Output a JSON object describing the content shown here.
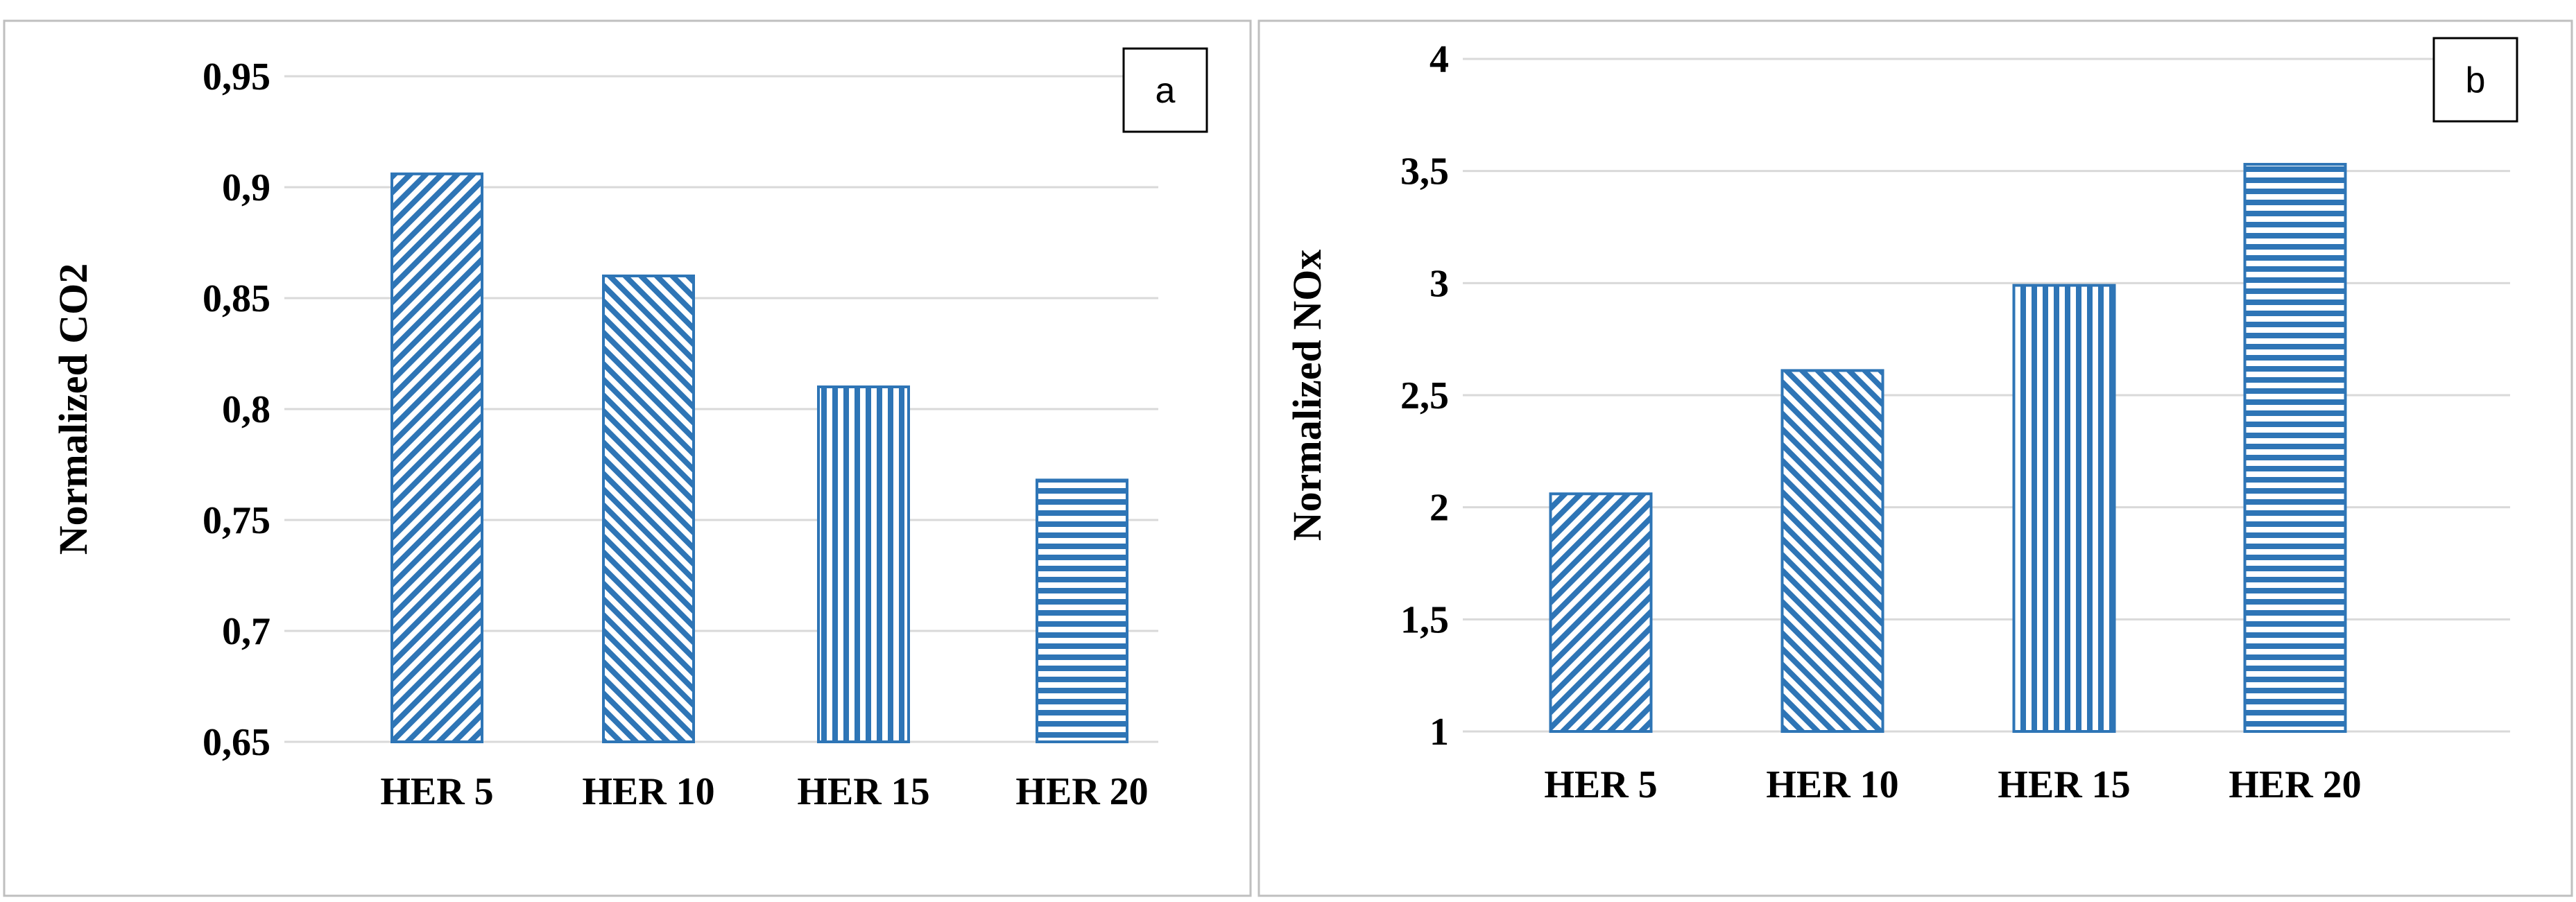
{
  "chart_data": [
    {
      "type": "bar",
      "panel_label": "a",
      "categories": [
        "HER 5",
        "HER 10",
        "HER 15",
        "HER 20"
      ],
      "values": [
        0.906,
        0.86,
        0.81,
        0.768
      ],
      "ylabel": "Normalized CO2",
      "ylim": [
        0.65,
        0.95
      ],
      "yticks": [
        0.65,
        0.7,
        0.75,
        0.8,
        0.85,
        0.9,
        0.95
      ],
      "ytick_labels": [
        "0,65",
        "0,7",
        "0,75",
        "0,8",
        "0,85",
        "0,9",
        "0,95"
      ],
      "patterns": [
        "diag-up",
        "diag-down",
        "vertical",
        "horizontal"
      ],
      "grid": true
    },
    {
      "type": "bar",
      "panel_label": "b",
      "categories": [
        "HER 5",
        "HER 10",
        "HER 15",
        "HER 20"
      ],
      "values": [
        2.06,
        2.61,
        2.99,
        3.53
      ],
      "ylabel": "Normalized NOx",
      "ylim": [
        1,
        4
      ],
      "yticks": [
        1,
        1.5,
        2,
        2.5,
        3,
        3.5,
        4
      ],
      "ytick_labels": [
        "1",
        "1,5",
        "2",
        "2,5",
        "3",
        "3,5",
        "4"
      ],
      "patterns": [
        "diag-up",
        "diag-down",
        "vertical",
        "horizontal"
      ],
      "grid": true
    }
  ],
  "colors": {
    "bar": "#2e75b6",
    "grid": "#d9d9d9",
    "frame": "#bfbfbf"
  }
}
